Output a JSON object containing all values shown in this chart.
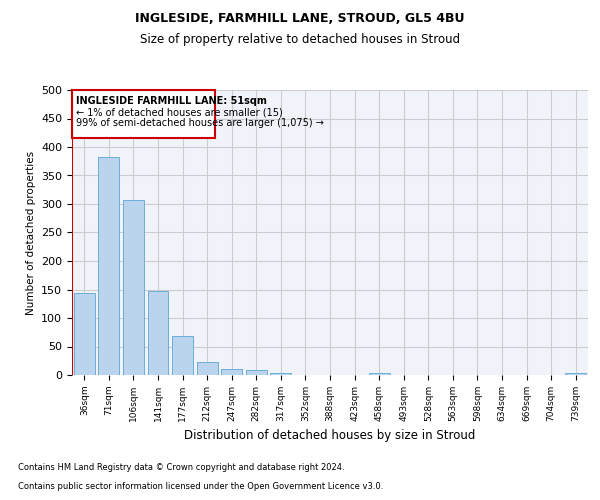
{
  "title1": "INGLESIDE, FARMHILL LANE, STROUD, GL5 4BU",
  "title2": "Size of property relative to detached houses in Stroud",
  "xlabel": "Distribution of detached houses by size in Stroud",
  "ylabel": "Number of detached properties",
  "bar_color": "#bad4ed",
  "bar_edge_color": "#6aaed6",
  "annotation_box_color": "#cc0000",
  "annotation_line1": "INGLESIDE FARMHILL LANE: 51sqm",
  "annotation_line2": "← 1% of detached houses are smaller (15)",
  "annotation_line3": "99% of semi-detached houses are larger (1,075) →",
  "footnote1": "Contains HM Land Registry data © Crown copyright and database right 2024.",
  "footnote2": "Contains public sector information licensed under the Open Government Licence v3.0.",
  "categories": [
    "36sqm",
    "71sqm",
    "106sqm",
    "141sqm",
    "177sqm",
    "212sqm",
    "247sqm",
    "282sqm",
    "317sqm",
    "352sqm",
    "388sqm",
    "423sqm",
    "458sqm",
    "493sqm",
    "528sqm",
    "563sqm",
    "598sqm",
    "634sqm",
    "669sqm",
    "704sqm",
    "739sqm"
  ],
  "values": [
    143,
    383,
    307,
    148,
    69,
    22,
    11,
    8,
    4,
    0,
    0,
    0,
    3,
    0,
    0,
    0,
    0,
    0,
    0,
    0,
    4
  ],
  "ylim": [
    0,
    500
  ],
  "yticks": [
    0,
    50,
    100,
    150,
    200,
    250,
    300,
    350,
    400,
    450,
    500
  ],
  "bg_color": "#f0f4fa"
}
